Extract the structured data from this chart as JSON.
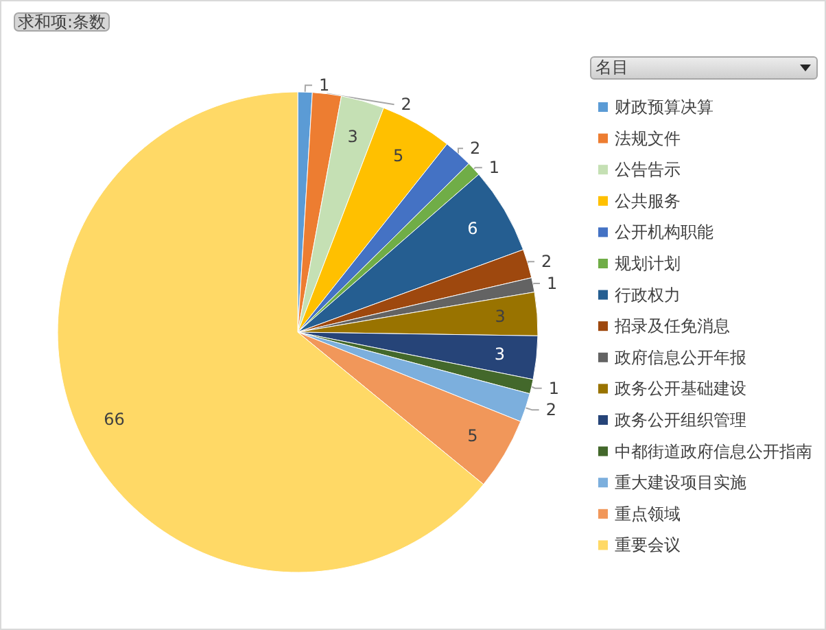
{
  "chart_data": {
    "type": "pie",
    "title": "求和项:条数",
    "legend_title": "名目",
    "categories": [
      "财政预算决算",
      "法规文件",
      "公告告示",
      "公共服务",
      "公开机构职能",
      "规划计划",
      "行政权力",
      "招录及任免消息",
      "政府信息公开年报",
      "政务公开基础建设",
      "政务公开组织管理",
      "中都街道政府信息公开指南",
      "重大建设项目实施",
      "重点领域",
      "重要会议"
    ],
    "values": [
      1,
      2,
      3,
      5,
      2,
      1,
      6,
      2,
      1,
      3,
      3,
      1,
      2,
      5,
      66
    ],
    "colors": [
      "#5b9bd5",
      "#ed7d31",
      "#c5e0b4",
      "#ffc000",
      "#4472c4",
      "#70ad47",
      "#255e91",
      "#9e480e",
      "#636363",
      "#997300",
      "#264478",
      "#43682b",
      "#7cafdd",
      "#f1975a",
      "#ffd966"
    ],
    "data_labels": true,
    "legend": "right"
  }
}
